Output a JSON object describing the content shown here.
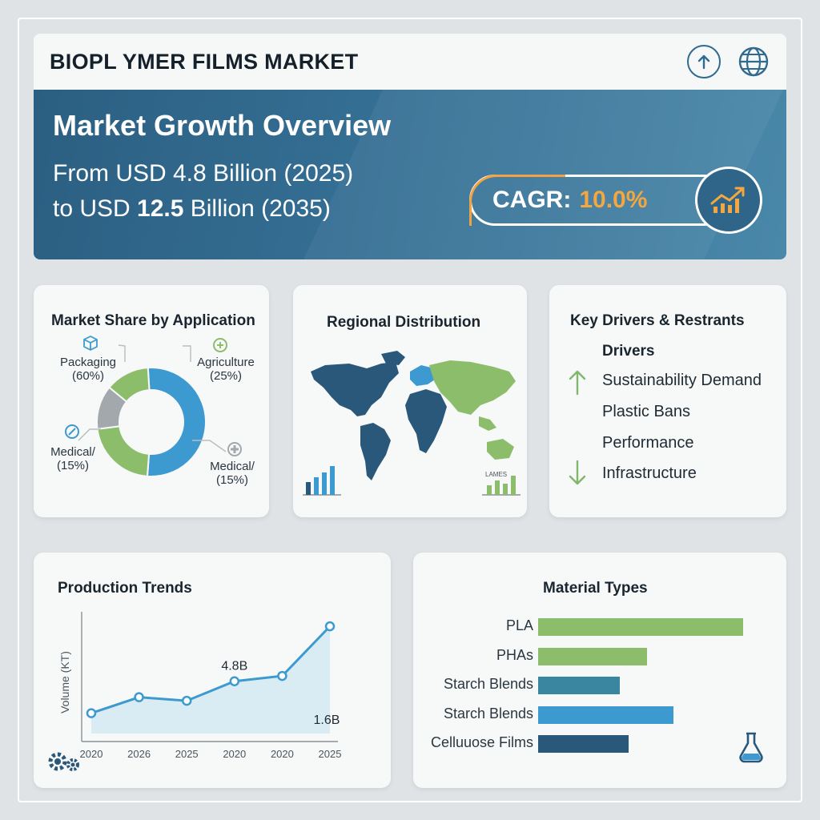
{
  "header": {
    "title": "BIOPL YMER FILMS MARKET",
    "upload_icon": "arrow-up-circle-icon",
    "globe_icon": "globe-icon"
  },
  "hero": {
    "title": "Market Growth Overview",
    "line1": "From USD 4.8 Billion (2025)",
    "line2_prefix": "to USD ",
    "line2_bold": "12.5",
    "line2_suffix": " Billion (2035)",
    "cagr_label": "CAGR:",
    "cagr_value": "10.0%",
    "cagr_icon": "trend-up-chart-icon"
  },
  "colors": {
    "navy": "#2b5f82",
    "accent_orange": "#f4a640",
    "green": "#8bbd6b",
    "blue": "#3d9ad0",
    "teal": "#3a86a0",
    "gray": "#a3a8ad",
    "dark_navy": "#2a587a"
  },
  "chart_data": [
    {
      "type": "pie",
      "title": "Market Share by Application",
      "slices": [
        {
          "label": "Packaging\n(60%)",
          "value": 60,
          "color": "#3d9ad0"
        },
        {
          "label": "Agriculture\n(25%)",
          "value": 25,
          "color": "#8bbd6b"
        },
        {
          "label": "Medical/\n(15%)",
          "value": 15,
          "color": "#a3a8ad"
        },
        {
          "label": "Medical/\n(15%)",
          "value": 15,
          "color": "#8bbd6b"
        }
      ],
      "labels": {
        "packaging": "Packaging",
        "packaging_pct": "(60%)",
        "agriculture": "Agriculture",
        "agriculture_pct": "(25%)",
        "medical_left": "Medical/",
        "medical_left_pct": "(15%)",
        "medical_right": "Medical/",
        "medical_right_pct": "(15%)"
      }
    },
    {
      "type": "line",
      "title": "Production Trends",
      "ylabel": "Volume (KT)",
      "x": [
        "2020",
        "2026",
        "2025",
        "2020",
        "2020",
        "2025"
      ],
      "values": [
        1.6,
        2.5,
        2.3,
        3.4,
        3.7,
        6.5
      ],
      "ylim": [
        0,
        7.5
      ],
      "annotations": [
        {
          "text": "4.8B",
          "at_index": 3
        },
        {
          "text": "1.6B",
          "at_index": 5
        }
      ]
    },
    {
      "type": "bar",
      "title": "Material Types",
      "orientation": "horizontal",
      "categories": [
        "PLA",
        "PHAs",
        "Starch Blends",
        "Starch Blends",
        "Celluuose Films"
      ],
      "values": [
        100,
        53,
        40,
        66,
        44
      ],
      "colors": [
        "#8bbd6b",
        "#8bbd6b",
        "#3a86a0",
        "#3d9ad0",
        "#2a587a"
      ]
    }
  ],
  "regional": {
    "title": "Regional Distribution",
    "legend_label": "LAMES"
  },
  "drivers": {
    "title": "Key Drivers & Restrants",
    "subtitle": "Drivers",
    "items": [
      "Sustainability Demand",
      "Plastic Bans",
      "Performance",
      "Infrastructure"
    ],
    "up_icon": "arrow-up-icon",
    "down_icon": "arrow-down-icon"
  },
  "footer": {
    "gear_icon": "gears-icon",
    "flask_icon": "flask-icon"
  }
}
